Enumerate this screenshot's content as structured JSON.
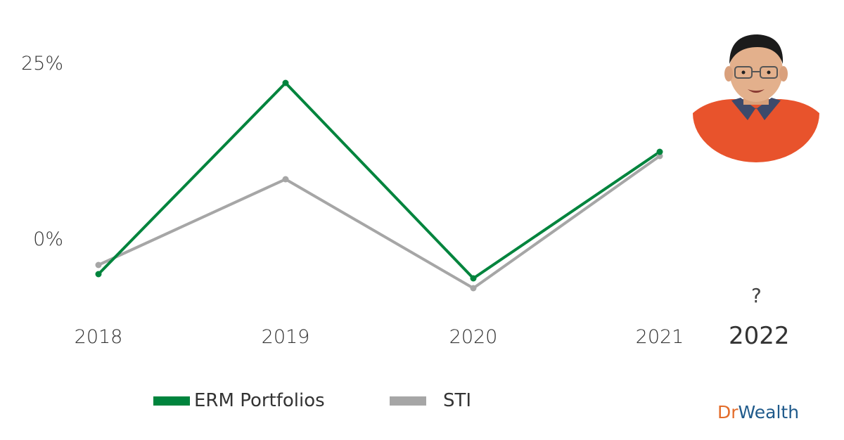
{
  "chart_data": {
    "type": "line",
    "categories": [
      "2018",
      "2019",
      "2020",
      "2021"
    ],
    "x_extra_labels": {
      "year": "2022",
      "mark": "?"
    },
    "y_ticks": [
      "25%",
      "0%"
    ],
    "ylim": [
      -11,
      31
    ],
    "series": [
      {
        "name": "ERM Portfolios",
        "color": "#00843d",
        "values": [
          -5,
          22.2,
          -5.6,
          12.4
        ]
      },
      {
        "name": "STI",
        "color": "#a6a6a6",
        "values": [
          -3.7,
          8.5,
          -7,
          11.8
        ]
      }
    ],
    "legend_position": "bottom-center",
    "grid": false
  },
  "branding": {
    "dr": "Dr",
    "wealth": "Wealth"
  },
  "colors": {
    "dr": "#e36c2a",
    "wealth": "#1f5a8b"
  },
  "presenter_icon": "presenter-avatar"
}
